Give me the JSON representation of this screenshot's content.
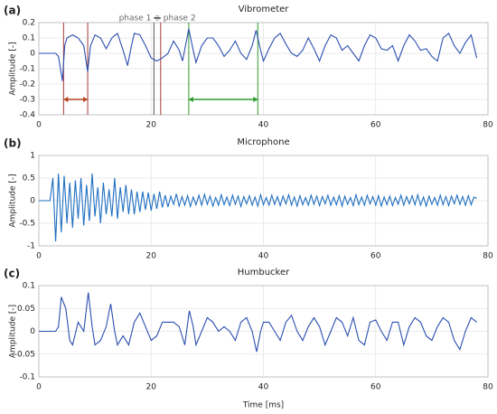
{
  "chart_data": [
    {
      "type": "line",
      "panel_label": "(a)",
      "title": "Vibrometer",
      "ylabel": "Amplitude [-]",
      "color": "#2b4fb0",
      "x": [
        0,
        3,
        3.5,
        4.2,
        4.6,
        5,
        6,
        7,
        8,
        8.7,
        9.2,
        10,
        11,
        12,
        13,
        14,
        15,
        15.8,
        16.5,
        17,
        18,
        19,
        20,
        21,
        22,
        23,
        24,
        25,
        25.6,
        26.7,
        27.5,
        28,
        29,
        30,
        31,
        32,
        33,
        34,
        35,
        36,
        37,
        38,
        38.7,
        39.5,
        40,
        41,
        42,
        43,
        44,
        45,
        46,
        47,
        48,
        49,
        50,
        51,
        52,
        53,
        54,
        55,
        56,
        57,
        58,
        59,
        60,
        61,
        62,
        63,
        64,
        65,
        66,
        67,
        68,
        69,
        70,
        71,
        72,
        73,
        74,
        75,
        76,
        77,
        78
      ],
      "values": [
        0,
        0,
        -0.02,
        -0.18,
        0.05,
        0.1,
        0.12,
        0.1,
        0.05,
        -0.12,
        0.05,
        0.12,
        0.1,
        0.03,
        0.1,
        0.13,
        0.02,
        -0.08,
        0.05,
        0.13,
        0.12,
        0.05,
        -0.03,
        -0.05,
        -0.03,
        0,
        0.08,
        0.02,
        -0.05,
        0.16,
        0.02,
        -0.06,
        0.05,
        0.1,
        0.1,
        0.05,
        -0.02,
        0.02,
        0.08,
        0,
        -0.04,
        0.05,
        0.15,
        0.02,
        -0.05,
        0.03,
        0.1,
        0.13,
        0.06,
        0,
        -0.02,
        0.02,
        0.1,
        0.03,
        -0.05,
        0.05,
        0.12,
        0.1,
        0.02,
        0.05,
        0,
        -0.05,
        0.05,
        0.12,
        0.1,
        0.03,
        0.02,
        0.05,
        -0.05,
        0.05,
        0.12,
        0.08,
        0.02,
        0.03,
        -0.02,
        -0.05,
        0.1,
        0.13,
        0.05,
        0,
        0.07,
        0.12,
        -0.03
      ],
      "xlim": [
        0,
        80
      ],
      "xticks": [
        0,
        20,
        40,
        60,
        80
      ],
      "ylim": [
        -0.4,
        0.2
      ],
      "yticks": [
        0.2,
        0.1,
        0,
        -0.1,
        -0.2,
        -0.3,
        -0.4
      ],
      "grid": true,
      "vlines": [
        {
          "x": 4.4,
          "color": "#a23a35"
        },
        {
          "x": 8.7,
          "color": "#a23a35"
        },
        {
          "x": 20.5,
          "color": "#555555"
        },
        {
          "x": 21.7,
          "color": "#a23a35"
        },
        {
          "x": 26.7,
          "color": "#2e9a2e"
        },
        {
          "x": 39,
          "color": "#2e9a2e"
        }
      ],
      "arrows": [
        {
          "from": 4.4,
          "to": 8.7,
          "y": -0.3,
          "color": "#b5441c"
        },
        {
          "from": 26.7,
          "to": 39,
          "y": -0.3,
          "color": "#2e9a2e"
        },
        {
          "from": 20.5,
          "to": 21.7,
          "y": 0.23,
          "color": "#555555"
        }
      ],
      "annotations": [
        "phase 1",
        "phase 2"
      ]
    },
    {
      "type": "line",
      "panel_label": "(b)",
      "title": "Microphone",
      "ylabel": "Amplitude [-]",
      "color": "#1f6fc0",
      "x": [
        0,
        2,
        2.5,
        3,
        3.5,
        4,
        4.5,
        5,
        5.5,
        6,
        6.5,
        7,
        7.5,
        8,
        8.5,
        9,
        9.5,
        10,
        10.5,
        11,
        11.5,
        12,
        12.5,
        13,
        13.5,
        14,
        14.5,
        15,
        15.5,
        16,
        16.5,
        17,
        17.5,
        18,
        18.5,
        19,
        19.5,
        20,
        20.5,
        21,
        21.5,
        22,
        22.5,
        23,
        23.5,
        24,
        24.5,
        25,
        25.5,
        26,
        26.5,
        27,
        27.5,
        28,
        28.5,
        29,
        29.5,
        30,
        30.5,
        31,
        31.5,
        32,
        32.5,
        33,
        33.5,
        34,
        34.5,
        35,
        35.5,
        36,
        36.5,
        37,
        37.5,
        38,
        38.5,
        39,
        39.5,
        40,
        40.5,
        41,
        41.5,
        42,
        42.5,
        43,
        43.5,
        44,
        44.5,
        45,
        45.5,
        46,
        46.5,
        47,
        47.5,
        48,
        48.5,
        49,
        49.5,
        50,
        50.5,
        51,
        51.5,
        52,
        52.5,
        53,
        53.5,
        54,
        54.5,
        55,
        55.5,
        56,
        56.5,
        57,
        57.5,
        58,
        58.5,
        59,
        59.5,
        60,
        60.5,
        61,
        61.5,
        62,
        62.5,
        63,
        63.5,
        64,
        64.5,
        65,
        65.5,
        66,
        66.5,
        67,
        67.5,
        68,
        68.5,
        69,
        69.5,
        70,
        70.5,
        71,
        71.5,
        72,
        72.5,
        73,
        73.5,
        74,
        74.5,
        75,
        75.5,
        76,
        76.5,
        77,
        77.5,
        78
      ],
      "values": [
        0,
        0,
        0.5,
        -0.9,
        0.6,
        -0.7,
        0.55,
        -0.5,
        0.4,
        -0.6,
        0.45,
        -0.4,
        0.5,
        -0.55,
        0.35,
        -0.45,
        0.6,
        -0.35,
        0.3,
        -0.5,
        0.4,
        -0.3,
        0.25,
        -0.35,
        0.5,
        -0.4,
        0.3,
        -0.25,
        0.35,
        -0.3,
        0.25,
        -0.3,
        0.2,
        -0.25,
        0.2,
        -0.2,
        0.18,
        -0.22,
        0.15,
        -0.18,
        0.2,
        -0.15,
        0.12,
        -0.14,
        0.1,
        -0.08,
        0.15,
        -0.12,
        0.09,
        -0.1,
        0.11,
        -0.13,
        0.08,
        -0.09,
        0.12,
        -0.1,
        0.14,
        -0.08,
        0.1,
        -0.12,
        0.07,
        -0.1,
        0.13,
        -0.09,
        0.08,
        -0.11,
        0.12,
        -0.08,
        0.1,
        -0.13,
        0.09,
        -0.07,
        0.11,
        -0.1,
        0.08,
        -0.12,
        0.13,
        -0.09,
        0.07,
        -0.1,
        0.12,
        -0.08,
        0.09,
        -0.11,
        0.1,
        -0.07,
        0.13,
        -0.1,
        0.08,
        -0.12,
        0.11,
        -0.09,
        0.07,
        -0.1,
        0.12,
        -0.08,
        0.1,
        -0.11,
        0.09,
        -0.07,
        0.12,
        -0.1,
        0.08,
        -0.09,
        0.11,
        -0.12,
        0.1,
        -0.08,
        0.07,
        -0.11,
        0.13,
        -0.09,
        0.08,
        -0.1,
        0.12,
        -0.07,
        0.09,
        -0.1,
        0.11,
        -0.12,
        0.08,
        -0.09,
        0.1,
        -0.11,
        0.07,
        -0.08,
        0.12,
        -0.1,
        0.09,
        -0.07,
        0.11,
        -0.09,
        0.13,
        -0.1,
        0.08,
        -0.12,
        0.1,
        -0.08,
        0.07,
        -0.1,
        0.12,
        -0.09,
        0.09,
        -0.11,
        0.1,
        -0.07,
        0.12,
        -0.08,
        0.09,
        -0.1,
        0.11,
        -0.09,
        0.08,
        0.05
      ],
      "xlim": [
        0,
        80
      ],
      "xticks": [
        0,
        20,
        40,
        60,
        80
      ],
      "ylim": [
        -1,
        1
      ],
      "yticks": [
        1,
        0.5,
        0,
        -0.5,
        -1
      ],
      "grid": true
    },
    {
      "type": "line",
      "panel_label": "(c)",
      "title": "Humbucker",
      "ylabel": "Amplitude [-]",
      "xlabel": "Time [ms]",
      "color": "#2b4fb0",
      "x": [
        0,
        3,
        3.5,
        4,
        4.8,
        5.5,
        6,
        7,
        8,
        8.8,
        9.5,
        10,
        11,
        12,
        12.8,
        13.5,
        14,
        15,
        16,
        17,
        18,
        19,
        20,
        21,
        22,
        23,
        24,
        25,
        26,
        26.8,
        27.5,
        28,
        29,
        30,
        31,
        32,
        33,
        34,
        35,
        36,
        37,
        38,
        38.8,
        39.5,
        40,
        41,
        42,
        43,
        44,
        45,
        46,
        47,
        48,
        49,
        50,
        51,
        52,
        53,
        54,
        55,
        56,
        57,
        58,
        59,
        60,
        61,
        62,
        63,
        64,
        65,
        66,
        67,
        68,
        69,
        70,
        71,
        72,
        73,
        74,
        75,
        76,
        77,
        78
      ],
      "values": [
        0,
        0,
        0.01,
        0.075,
        0.05,
        -0.02,
        -0.03,
        0.02,
        0,
        0.085,
        0.01,
        -0.03,
        -0.02,
        0.01,
        0.06,
        0,
        -0.03,
        -0.01,
        -0.03,
        0.02,
        0.04,
        0.01,
        -0.02,
        -0.01,
        0.02,
        0.02,
        0.02,
        0.01,
        -0.03,
        0.045,
        0.01,
        -0.03,
        0,
        0.03,
        0.02,
        0,
        0.01,
        0,
        -0.02,
        0.02,
        0.03,
        0,
        -0.045,
        0,
        0.02,
        0.02,
        0,
        -0.02,
        0.02,
        0.035,
        0,
        -0.02,
        0.01,
        0.03,
        0.01,
        -0.03,
        0,
        0.03,
        0.02,
        -0.01,
        0.03,
        -0.02,
        -0.03,
        0.02,
        0.025,
        0,
        -0.02,
        0.02,
        0.02,
        -0.03,
        0.01,
        0.03,
        0.02,
        -0.01,
        -0.02,
        0.01,
        0.03,
        0.02,
        -0.02,
        -0.04,
        0,
        0.03,
        0.02
      ],
      "xlim": [
        0,
        80
      ],
      "xticks": [
        0,
        20,
        40,
        60,
        80
      ],
      "ylim": [
        -0.1,
        0.1
      ],
      "yticks": [
        0.1,
        0.05,
        0,
        -0.05,
        -0.1
      ],
      "grid": true
    }
  ]
}
